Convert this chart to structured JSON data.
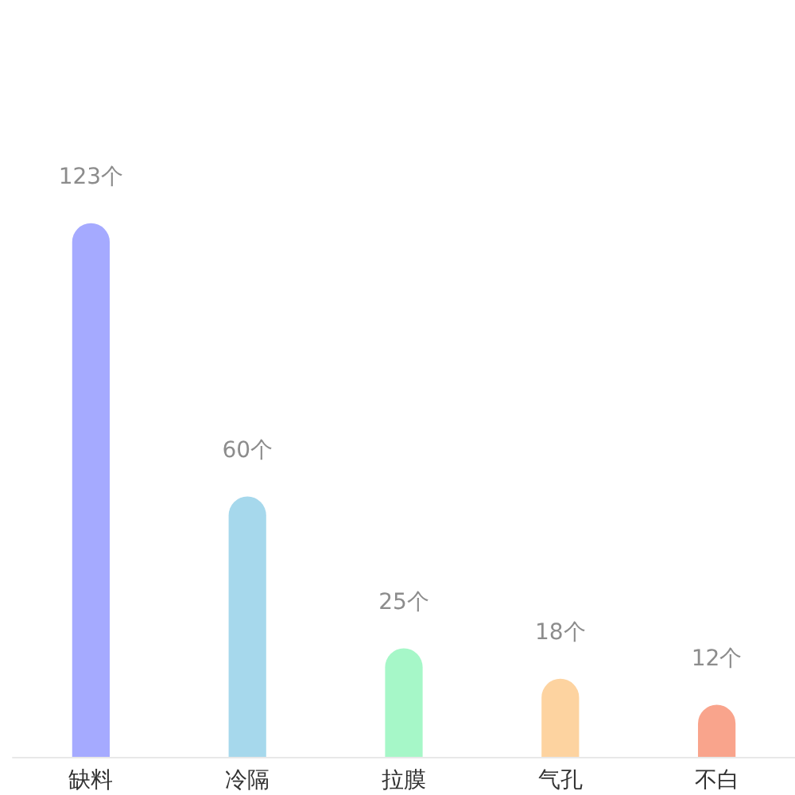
{
  "chart_data": {
    "type": "bar",
    "categories": [
      "缺料",
      "冷隔",
      "拉膜",
      "气孔",
      "不白"
    ],
    "values": [
      123,
      60,
      25,
      18,
      12
    ],
    "value_labels": [
      "123个",
      "60个",
      "25个",
      "18个",
      "12个"
    ],
    "colors": [
      "#a5aaff",
      "#a6d8ec",
      "#a6f7c8",
      "#fdd3a0",
      "#f9a48c"
    ]
  }
}
